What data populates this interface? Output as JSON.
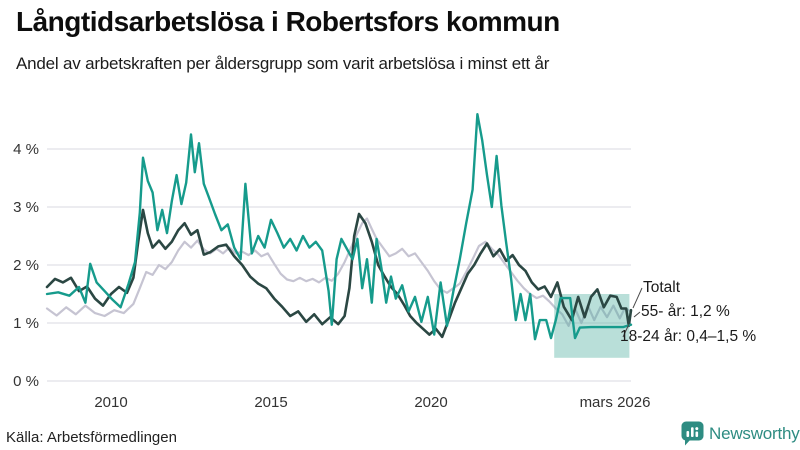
{
  "header": {
    "title": "Långtidsarbetslösa i Robertsfors kommun",
    "subtitle": "Andel av arbetskraften per åldersgrupp som varit arbetslösa i minst ett år"
  },
  "footer": {
    "source": "Källa: Arbetsförmedlingen",
    "brand": "Newsworthy"
  },
  "chart_data": {
    "type": "line",
    "title": "Långtidsarbetslösa i Robertsfors kommun",
    "subtitle": "Andel av arbetskraften per åldersgrupp som varit arbetslösa i minst ett år",
    "source": "Källa: Arbetsförmedlingen",
    "xlabel": "",
    "ylabel": "",
    "xlim": [
      2008.0,
      2026.25
    ],
    "ylim": [
      0,
      4.7
    ],
    "grid": true,
    "grid_color": "#d9d9e1",
    "tick_color": "#333333",
    "x_ticks": [
      {
        "label": "2010",
        "year": 2010
      },
      {
        "label": "2015",
        "year": 2015
      },
      {
        "label": "2020",
        "year": 2020
      },
      {
        "label": "mars 2026",
        "year": 2026.2
      }
    ],
    "y_ticks": [
      {
        "label": "0 %",
        "value": 0
      },
      {
        "label": "1 %",
        "value": 1
      },
      {
        "label": "2 %",
        "value": 2
      },
      {
        "label": "3 %",
        "value": 3
      },
      {
        "label": "4 %",
        "value": 4
      }
    ],
    "series": [
      {
        "name": "55- år",
        "color": "#c6c4d2",
        "width": 2.2,
        "final_value_label": "1,2 %",
        "points": [
          [
            2008.0,
            1.25
          ],
          [
            2008.3,
            1.13
          ],
          [
            2008.6,
            1.27
          ],
          [
            2008.9,
            1.15
          ],
          [
            2009.2,
            1.3
          ],
          [
            2009.5,
            1.17
          ],
          [
            2009.8,
            1.12
          ],
          [
            2010.1,
            1.22
          ],
          [
            2010.4,
            1.17
          ],
          [
            2010.7,
            1.33
          ],
          [
            2010.9,
            1.6
          ],
          [
            2011.1,
            1.88
          ],
          [
            2011.3,
            1.83
          ],
          [
            2011.5,
            2.0
          ],
          [
            2011.7,
            1.93
          ],
          [
            2011.9,
            2.05
          ],
          [
            2012.1,
            2.25
          ],
          [
            2012.3,
            2.4
          ],
          [
            2012.5,
            2.3
          ],
          [
            2012.7,
            2.42
          ],
          [
            2012.9,
            2.27
          ],
          [
            2013.1,
            2.2
          ],
          [
            2013.3,
            2.28
          ],
          [
            2013.5,
            2.2
          ],
          [
            2013.7,
            2.3
          ],
          [
            2013.9,
            2.2
          ],
          [
            2014.1,
            2.23
          ],
          [
            2014.3,
            2.17
          ],
          [
            2014.5,
            2.25
          ],
          [
            2014.7,
            2.15
          ],
          [
            2014.9,
            2.2
          ],
          [
            2015.1,
            2.02
          ],
          [
            2015.3,
            1.85
          ],
          [
            2015.5,
            1.75
          ],
          [
            2015.7,
            1.72
          ],
          [
            2015.9,
            1.78
          ],
          [
            2016.1,
            1.72
          ],
          [
            2016.3,
            1.76
          ],
          [
            2016.5,
            1.7
          ],
          [
            2016.7,
            1.78
          ],
          [
            2016.9,
            1.73
          ],
          [
            2017.1,
            1.85
          ],
          [
            2017.3,
            2.05
          ],
          [
            2017.5,
            2.3
          ],
          [
            2017.7,
            2.55
          ],
          [
            2017.85,
            2.72
          ],
          [
            2018.0,
            2.8
          ],
          [
            2018.15,
            2.62
          ],
          [
            2018.3,
            2.45
          ],
          [
            2018.5,
            2.3
          ],
          [
            2018.7,
            2.15
          ],
          [
            2018.9,
            2.2
          ],
          [
            2019.1,
            2.28
          ],
          [
            2019.3,
            2.15
          ],
          [
            2019.5,
            2.2
          ],
          [
            2019.7,
            2.05
          ],
          [
            2019.9,
            1.9
          ],
          [
            2020.1,
            1.72
          ],
          [
            2020.3,
            1.58
          ],
          [
            2020.5,
            1.52
          ],
          [
            2020.7,
            1.6
          ],
          [
            2020.9,
            1.68
          ],
          [
            2021.1,
            1.88
          ],
          [
            2021.3,
            2.1
          ],
          [
            2021.5,
            2.33
          ],
          [
            2021.7,
            2.4
          ],
          [
            2021.9,
            2.28
          ],
          [
            2022.1,
            2.18
          ],
          [
            2022.3,
            2.03
          ],
          [
            2022.5,
            1.88
          ],
          [
            2022.7,
            1.73
          ],
          [
            2022.9,
            1.6
          ],
          [
            2023.1,
            1.5
          ],
          [
            2023.3,
            1.43
          ],
          [
            2023.5,
            1.47
          ],
          [
            2023.7,
            1.37
          ],
          [
            2023.9,
            1.25
          ],
          [
            2024.1,
            1.15
          ],
          [
            2024.3,
            0.95
          ],
          [
            2024.5,
            1.25
          ],
          [
            2024.7,
            1.0
          ],
          [
            2024.9,
            1.3
          ],
          [
            2025.1,
            1.05
          ],
          [
            2025.3,
            1.28
          ],
          [
            2025.5,
            1.1
          ],
          [
            2025.7,
            1.3
          ],
          [
            2025.9,
            1.08
          ],
          [
            2026.05,
            1.25
          ],
          [
            2026.25,
            1.2
          ]
        ]
      },
      {
        "name": "Totalt",
        "color": "#2b4743",
        "width": 2.6,
        "points": [
          [
            2008.0,
            1.62
          ],
          [
            2008.25,
            1.76
          ],
          [
            2008.5,
            1.7
          ],
          [
            2008.75,
            1.78
          ],
          [
            2009.0,
            1.55
          ],
          [
            2009.25,
            1.63
          ],
          [
            2009.5,
            1.42
          ],
          [
            2009.75,
            1.3
          ],
          [
            2010.0,
            1.5
          ],
          [
            2010.25,
            1.62
          ],
          [
            2010.5,
            1.52
          ],
          [
            2010.7,
            1.78
          ],
          [
            2010.85,
            2.4
          ],
          [
            2011.0,
            2.95
          ],
          [
            2011.15,
            2.55
          ],
          [
            2011.3,
            2.3
          ],
          [
            2011.5,
            2.42
          ],
          [
            2011.7,
            2.28
          ],
          [
            2011.9,
            2.4
          ],
          [
            2012.1,
            2.6
          ],
          [
            2012.3,
            2.72
          ],
          [
            2012.5,
            2.52
          ],
          [
            2012.7,
            2.6
          ],
          [
            2012.9,
            2.18
          ],
          [
            2013.1,
            2.22
          ],
          [
            2013.35,
            2.32
          ],
          [
            2013.6,
            2.35
          ],
          [
            2013.85,
            2.15
          ],
          [
            2014.1,
            2.0
          ],
          [
            2014.35,
            1.8
          ],
          [
            2014.6,
            1.68
          ],
          [
            2014.85,
            1.6
          ],
          [
            2015.1,
            1.42
          ],
          [
            2015.35,
            1.28
          ],
          [
            2015.6,
            1.12
          ],
          [
            2015.85,
            1.2
          ],
          [
            2016.1,
            1.02
          ],
          [
            2016.35,
            1.15
          ],
          [
            2016.6,
            0.98
          ],
          [
            2016.85,
            1.1
          ],
          [
            2017.1,
            0.98
          ],
          [
            2017.3,
            1.12
          ],
          [
            2017.45,
            1.6
          ],
          [
            2017.6,
            2.5
          ],
          [
            2017.75,
            2.88
          ],
          [
            2017.95,
            2.72
          ],
          [
            2018.15,
            2.4
          ],
          [
            2018.35,
            2.0
          ],
          [
            2018.55,
            1.8
          ],
          [
            2018.75,
            1.62
          ],
          [
            2018.95,
            1.5
          ],
          [
            2019.15,
            1.32
          ],
          [
            2019.35,
            1.12
          ],
          [
            2019.55,
            1.0
          ],
          [
            2019.75,
            0.9
          ],
          [
            2019.95,
            0.8
          ],
          [
            2020.15,
            0.9
          ],
          [
            2020.35,
            0.76
          ],
          [
            2020.55,
            1.05
          ],
          [
            2020.75,
            1.35
          ],
          [
            2020.95,
            1.6
          ],
          [
            2021.15,
            1.85
          ],
          [
            2021.35,
            2.0
          ],
          [
            2021.55,
            2.2
          ],
          [
            2021.75,
            2.37
          ],
          [
            2021.95,
            2.15
          ],
          [
            2022.15,
            2.27
          ],
          [
            2022.35,
            2.07
          ],
          [
            2022.55,
            2.17
          ],
          [
            2022.75,
            2.0
          ],
          [
            2022.95,
            1.9
          ],
          [
            2023.15,
            1.7
          ],
          [
            2023.35,
            1.58
          ],
          [
            2023.55,
            1.63
          ],
          [
            2023.75,
            1.45
          ],
          [
            2023.95,
            1.7
          ],
          [
            2024.15,
            1.28
          ],
          [
            2024.4,
            1.05
          ],
          [
            2024.6,
            1.45
          ],
          [
            2024.8,
            1.1
          ],
          [
            2025.0,
            1.45
          ],
          [
            2025.2,
            1.58
          ],
          [
            2025.4,
            1.27
          ],
          [
            2025.6,
            1.47
          ],
          [
            2025.8,
            1.45
          ],
          [
            2025.95,
            1.25
          ],
          [
            2026.1,
            1.25
          ],
          [
            2026.18,
            0.95
          ],
          [
            2026.25,
            1.22
          ]
        ]
      },
      {
        "name": "18-24 år",
        "color": "#169b8c",
        "width": 2.4,
        "final_range_label": "0,4–1,5 %",
        "points": [
          [
            2008.0,
            1.5
          ],
          [
            2008.35,
            1.53
          ],
          [
            2008.7,
            1.47
          ],
          [
            2009.0,
            1.62
          ],
          [
            2009.2,
            1.35
          ],
          [
            2009.35,
            2.02
          ],
          [
            2009.55,
            1.7
          ],
          [
            2009.8,
            1.55
          ],
          [
            2010.05,
            1.4
          ],
          [
            2010.3,
            1.27
          ],
          [
            2010.55,
            1.68
          ],
          [
            2010.75,
            2.05
          ],
          [
            2010.9,
            2.9
          ],
          [
            2011.0,
            3.85
          ],
          [
            2011.15,
            3.45
          ],
          [
            2011.3,
            3.25
          ],
          [
            2011.45,
            2.6
          ],
          [
            2011.6,
            2.95
          ],
          [
            2011.75,
            2.55
          ],
          [
            2011.9,
            3.1
          ],
          [
            2012.05,
            3.55
          ],
          [
            2012.2,
            3.05
          ],
          [
            2012.35,
            3.42
          ],
          [
            2012.5,
            4.25
          ],
          [
            2012.62,
            3.6
          ],
          [
            2012.75,
            4.1
          ],
          [
            2012.9,
            3.4
          ],
          [
            2013.05,
            3.18
          ],
          [
            2013.25,
            2.88
          ],
          [
            2013.45,
            2.6
          ],
          [
            2013.65,
            2.7
          ],
          [
            2013.85,
            2.3
          ],
          [
            2014.05,
            2.1
          ],
          [
            2014.2,
            3.4
          ],
          [
            2014.4,
            2.2
          ],
          [
            2014.6,
            2.5
          ],
          [
            2014.8,
            2.3
          ],
          [
            2015.0,
            2.78
          ],
          [
            2015.2,
            2.55
          ],
          [
            2015.4,
            2.3
          ],
          [
            2015.6,
            2.45
          ],
          [
            2015.8,
            2.25
          ],
          [
            2016.0,
            2.5
          ],
          [
            2016.2,
            2.3
          ],
          [
            2016.4,
            2.4
          ],
          [
            2016.6,
            2.25
          ],
          [
            2016.8,
            1.55
          ],
          [
            2016.9,
            0.97
          ],
          [
            2017.05,
            2.1
          ],
          [
            2017.2,
            2.45
          ],
          [
            2017.4,
            2.25
          ],
          [
            2017.55,
            2.1
          ],
          [
            2017.7,
            2.45
          ],
          [
            2017.85,
            1.6
          ],
          [
            2018.0,
            2.1
          ],
          [
            2018.15,
            1.35
          ],
          [
            2018.3,
            2.45
          ],
          [
            2018.45,
            1.95
          ],
          [
            2018.6,
            1.35
          ],
          [
            2018.75,
            1.8
          ],
          [
            2018.9,
            1.42
          ],
          [
            2019.1,
            1.65
          ],
          [
            2019.3,
            1.2
          ],
          [
            2019.5,
            1.45
          ],
          [
            2019.7,
            1.02
          ],
          [
            2019.9,
            1.45
          ],
          [
            2020.1,
            0.8
          ],
          [
            2020.3,
            1.7
          ],
          [
            2020.5,
            0.95
          ],
          [
            2020.7,
            1.55
          ],
          [
            2020.9,
            2.1
          ],
          [
            2021.1,
            2.72
          ],
          [
            2021.3,
            3.3
          ],
          [
            2021.45,
            4.6
          ],
          [
            2021.6,
            4.15
          ],
          [
            2021.75,
            3.55
          ],
          [
            2021.9,
            3.0
          ],
          [
            2022.05,
            3.88
          ],
          [
            2022.2,
            3.02
          ],
          [
            2022.35,
            2.38
          ],
          [
            2022.5,
            1.78
          ],
          [
            2022.65,
            1.05
          ],
          [
            2022.8,
            1.5
          ],
          [
            2022.95,
            1.05
          ],
          [
            2023.1,
            1.5
          ],
          [
            2023.25,
            0.72
          ],
          [
            2023.4,
            1.05
          ],
          [
            2023.6,
            1.05
          ],
          [
            2023.75,
            0.74
          ],
          [
            2023.9,
            1.05
          ],
          [
            2024.05,
            1.43
          ],
          [
            2024.35,
            1.43
          ],
          [
            2024.5,
            0.74
          ],
          [
            2024.65,
            0.92
          ],
          [
            2025.0,
            0.93
          ],
          [
            2025.5,
            0.93
          ],
          [
            2026.0,
            0.93
          ],
          [
            2026.25,
            0.97
          ]
        ]
      }
    ],
    "uncertainty_band": {
      "series": "18-24 år",
      "from_year": 2023.85,
      "to_year": 2026.2,
      "low_pct": 0.4,
      "high_pct": 1.5,
      "color": "rgba(80,176,161,0.40)"
    },
    "annotations": [
      {
        "label": "Totalt",
        "series": "Totalt"
      },
      {
        "label": "55- år: 1,2 %",
        "series": "55- år"
      },
      {
        "label": "18-24 år: 0,4–1,5 %",
        "series": "18-24 år"
      }
    ],
    "legend_position": "annotated-right"
  }
}
